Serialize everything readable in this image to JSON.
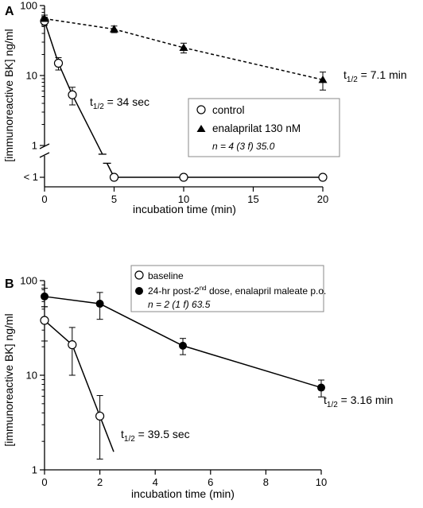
{
  "chart_data": [
    {
      "panel": "A",
      "type": "scatter",
      "xlabel": "incubation time (min)",
      "ylabel": "[immunoreactive BK]  ng/ml",
      "xlim": [
        0,
        20
      ],
      "ylim": [
        1,
        100
      ],
      "yscale": "log",
      "xticks": [
        0,
        5,
        10,
        15,
        20
      ],
      "yticks": [
        {
          "v": 1,
          "label": "1"
        },
        {
          "v": 10,
          "label": "10"
        },
        {
          "v": 100,
          "label": "100"
        }
      ],
      "below_break_label": "< 1",
      "series": [
        {
          "name": "control",
          "marker": "open-circle",
          "points": [
            {
              "x": 0,
              "y": 60,
              "err": 8
            },
            {
              "x": 1,
              "y": 15,
              "err": 3
            },
            {
              "x": 2,
              "y": 5.3,
              "err": 1.5
            },
            {
              "x": 5,
              "y": "< 1"
            },
            {
              "x": 10,
              "y": "< 1"
            },
            {
              "x": 20,
              "y": "< 1"
            }
          ],
          "fit": "solid"
        },
        {
          "name": "enalaprilat 130 nM",
          "marker": "filled-triangle",
          "points": [
            {
              "x": 0,
              "y": 65,
              "err": 8
            },
            {
              "x": 5,
              "y": 46,
              "err": 5
            },
            {
              "x": 10,
              "y": 25,
              "err": 4
            },
            {
              "x": 20,
              "y": 8.7,
              "err": 2.5
            }
          ],
          "fit": "dashed"
        }
      ],
      "annotations": [
        {
          "base": "t",
          "sub": "1/2",
          "text": " = 34 sec"
        },
        {
          "base": "t",
          "sub": "1/2",
          "text": " = 7.1 min"
        }
      ],
      "legend_note": "n = 4 (3 f) 35.0",
      "legend_position": "center-right"
    },
    {
      "panel": "B",
      "type": "scatter",
      "xlabel": "incubation time (min)",
      "ylabel": "[immunoreactive BK]  ng/ml",
      "xlim": [
        0,
        10
      ],
      "ylim": [
        1,
        100
      ],
      "yscale": "log",
      "xticks": [
        0,
        2,
        4,
        6,
        8,
        10
      ],
      "yticks": [
        {
          "v": 1,
          "label": "1"
        },
        {
          "v": 10,
          "label": "10"
        },
        {
          "v": 100,
          "label": "100"
        }
      ],
      "series": [
        {
          "name": "baseline",
          "marker": "open-circle",
          "points": [
            {
              "x": 0,
              "y": 38,
              "err": 15
            },
            {
              "x": 1,
              "y": 21,
              "err": 11
            },
            {
              "x": 2,
              "y": 3.7,
              "err": 2.4
            }
          ],
          "fit": "solid"
        },
        {
          "name_parts": {
            "pre": "24-hr post-2",
            "sup": "nd",
            "post": " dose, enalapril maleate p.o."
          },
          "marker": "filled-circle",
          "points": [
            {
              "x": 0,
              "y": 68,
              "err": 15
            },
            {
              "x": 2,
              "y": 57,
              "err": 18
            },
            {
              "x": 5,
              "y": 20.5,
              "err": 4
            },
            {
              "x": 10,
              "y": 7.4,
              "err": 1.5
            }
          ],
          "fit": "solid"
        }
      ],
      "annotations": [
        {
          "base": "t",
          "sub": "1/2",
          "text": " = 39.5 sec"
        },
        {
          "base": "t",
          "sub": "1/2",
          "text": " = 3.16 min"
        }
      ],
      "legend_note": "n = 2 (1 f) 63.5",
      "legend_position": "top"
    }
  ]
}
